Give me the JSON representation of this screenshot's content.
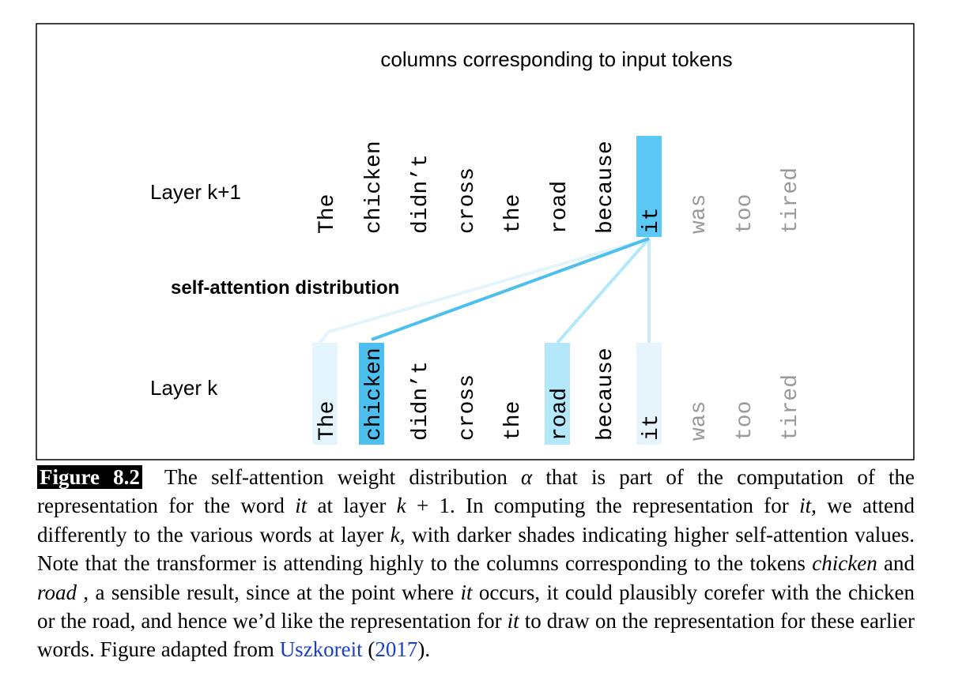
{
  "figure": {
    "heading": "columns corresponding to input tokens",
    "upper_layer": "Layer k+1",
    "lower_layer": "Layer k",
    "attention_label": "self-attention distribution",
    "upper_tokens": [
      {
        "text": "The",
        "color": "#000000"
      },
      {
        "text": "chicken",
        "color": "#000000"
      },
      {
        "text": "didn’t",
        "color": "#000000"
      },
      {
        "text": "cross",
        "color": "#000000"
      },
      {
        "text": "the",
        "color": "#000000"
      },
      {
        "text": "road",
        "color": "#000000"
      },
      {
        "text": "because",
        "color": "#000000"
      },
      {
        "text": "it",
        "color": "#000000",
        "shade": "#5bc8f5"
      },
      {
        "text": "was",
        "color": "#9a9a9a"
      },
      {
        "text": "too",
        "color": "#9a9a9a"
      },
      {
        "text": "tired",
        "color": "#9a9a9a"
      }
    ],
    "lower_tokens": [
      {
        "text": "The",
        "color": "#000000",
        "shade": "#e3f4fc"
      },
      {
        "text": "chicken",
        "color": "#000000",
        "shade": "#4dbfef"
      },
      {
        "text": "didn’t",
        "color": "#000000"
      },
      {
        "text": "cross",
        "color": "#000000"
      },
      {
        "text": "the",
        "color": "#000000"
      },
      {
        "text": "road",
        "color": "#000000",
        "shade": "#b3e7fa"
      },
      {
        "text": "because",
        "color": "#000000"
      },
      {
        "text": "it",
        "color": "#000000",
        "shade": "#e6f5fc"
      },
      {
        "text": "was",
        "color": "#9a9a9a"
      },
      {
        "text": "too",
        "color": "#9a9a9a"
      },
      {
        "text": "tired",
        "color": "#9a9a9a"
      }
    ]
  },
  "caption": {
    "label": "Figure 8.2",
    "runs": [
      {
        "text": "The self-attention weight distribution "
      },
      {
        "text": "α",
        "italic": true
      },
      {
        "text": " that is part of the computation of the representation for the word "
      },
      {
        "text": "it",
        "italic": true
      },
      {
        "text": " at layer "
      },
      {
        "text": "k",
        "italic": true
      },
      {
        "text": " + 1. In computing the representation for "
      },
      {
        "text": "it",
        "italic": true
      },
      {
        "text": ", we attend differently to the various words at layer "
      },
      {
        "text": "k",
        "italic": true
      },
      {
        "text": ", with darker shades indicating higher self-attention values.  Note that the transformer is attending highly to the columns corresponding to the tokens "
      },
      {
        "text": "chicken",
        "italic": true
      },
      {
        "text": " and "
      },
      {
        "text": "road",
        "italic": true
      },
      {
        "text": " , a sensible result, since at the point where "
      },
      {
        "text": "it",
        "italic": true
      },
      {
        "text": " occurs, it could plausibly corefer with the chicken or the road, and hence we’d like the representation for "
      },
      {
        "text": "it",
        "italic": true
      },
      {
        "text": " to draw on the representation for these earlier words. Figure adapted from "
      },
      {
        "text": "Uszkoreit",
        "link": true
      },
      {
        "text": " ("
      },
      {
        "text": "2017",
        "link": true
      },
      {
        "text": ")."
      }
    ]
  }
}
